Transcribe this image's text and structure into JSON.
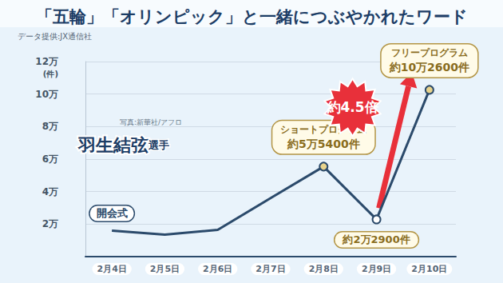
{
  "chart_data": {
    "type": "line",
    "title": "「五輪」「オリンピック」と一緒につぶやかれたワード",
    "source": "データ提供:JX通信社",
    "photo_credit": "写真:新華社/アフロ",
    "athlete": "羽生結弦",
    "athlete_suffix": "選手",
    "y_unit": "(件)",
    "categories": [
      "2月4日",
      "2月5日",
      "2月6日",
      "2月7日",
      "2月8日",
      "2月9日",
      "2月10日"
    ],
    "values": [
      16000,
      13500,
      16500,
      36000,
      55400,
      22900,
      102600
    ],
    "value_labels": [
      null,
      null,
      null,
      null,
      "約5万5400件",
      "約2万2900件",
      "約10万2600件"
    ],
    "annotations": [
      {
        "x": "2月4日",
        "text": "開会式"
      },
      {
        "x": "2月8日",
        "text": "ショートプログラム"
      },
      {
        "x": "2月10日",
        "text": "フリープログラム"
      }
    ],
    "ratio_label": "約4.5倍",
    "color": "#2b4a6b",
    "marker": "circle",
    "ylim": [
      0,
      120000
    ],
    "yticks": [
      {
        "value": 20000,
        "label": "2万"
      },
      {
        "value": 40000,
        "label": "4万"
      },
      {
        "value": 60000,
        "label": "6万"
      },
      {
        "value": 80000,
        "label": "8万"
      },
      {
        "value": 100000,
        "label": "10万"
      },
      {
        "value": 120000,
        "label": "12万"
      }
    ],
    "grid": true
  }
}
